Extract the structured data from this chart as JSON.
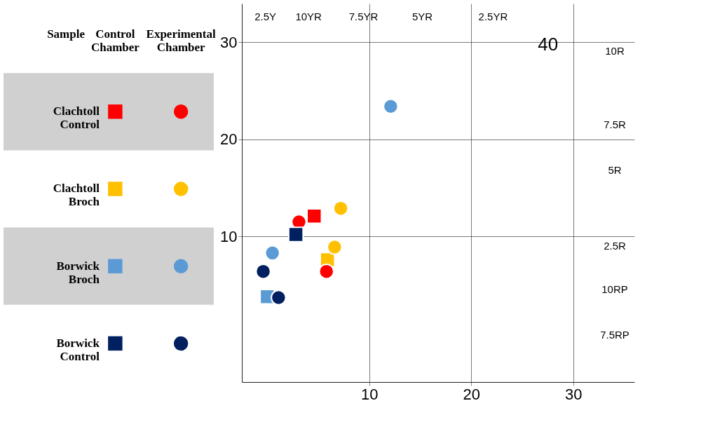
{
  "chart_data": {
    "type": "scatter",
    "legend_title": "Sample",
    "legend": "left",
    "grid": true,
    "xlim": [
      -2.5,
      36
    ],
    "ylim": [
      -5,
      34
    ],
    "xticks": [
      10,
      20,
      30
    ],
    "yticks": [
      10,
      20,
      30
    ],
    "series": [
      {
        "name": "Clachtoll Control",
        "color": "#ff0000",
        "marker": "square",
        "x": [
          4.6
        ],
        "values": [
          12.1
        ]
      },
      {
        "color": "#ff0000",
        "marker": "circle",
        "x": [
          3.1,
          5.8
        ],
        "values": [
          11.5,
          6.4
        ]
      },
      {
        "name": "Clachtoll Broch",
        "color": "#ffc000",
        "marker": "square",
        "x": [
          5.9
        ],
        "values": [
          7.6
        ]
      },
      {
        "color": "#ffc000",
        "marker": "circle",
        "x": [
          7.2,
          6.6
        ],
        "values": [
          12.9,
          8.9
        ]
      },
      {
        "name": "Borwick Broch",
        "color": "#5b9bd5",
        "marker": "square",
        "x": [
          0.0
        ],
        "values": [
          3.8
        ]
      },
      {
        "color": "#5b9bd5",
        "marker": "circle",
        "x": [
          12.1,
          0.5
        ],
        "values": [
          23.4,
          8.3
        ]
      },
      {
        "name": "Borwick Control",
        "color": "#002060",
        "marker": "square",
        "x": [
          2.8
        ],
        "values": [
          10.2
        ]
      },
      {
        "color": "#002060",
        "marker": "circle",
        "x": [
          -0.4,
          1.1
        ],
        "values": [
          6.4,
          3.7
        ]
      }
    ],
    "annotations": [
      "Control Chamber",
      "Experimental Chamber",
      "2.5Y",
      "10YR",
      "7.5YR",
      "5YR",
      "2.5YR",
      "10R",
      "7.5R",
      "5R",
      "2.5R",
      "10RP",
      "7.5RP",
      "40"
    ]
  }
}
